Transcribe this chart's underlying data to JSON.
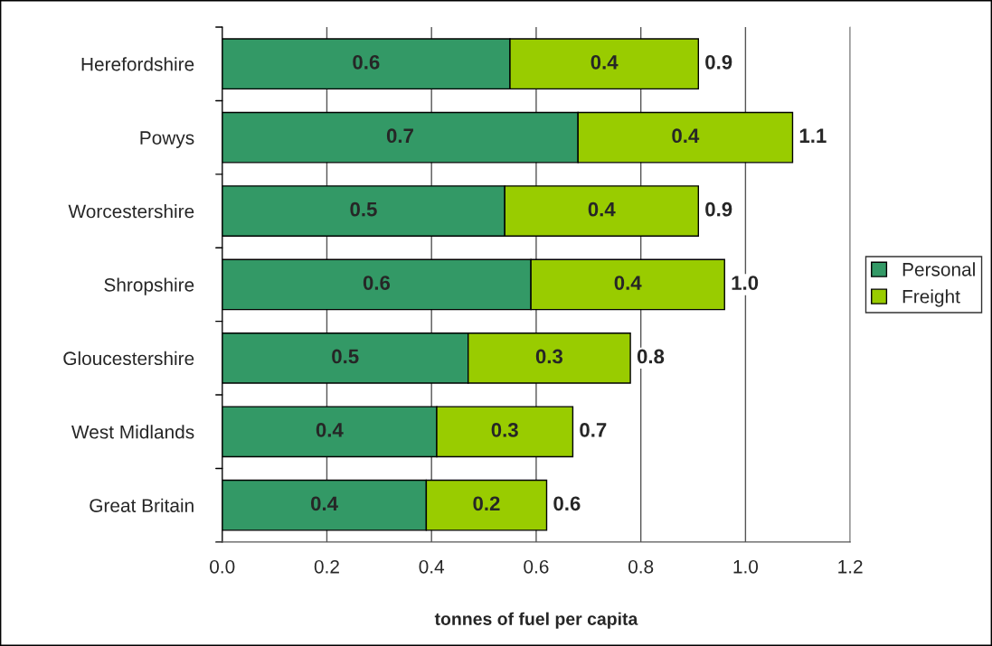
{
  "chart_data": {
    "type": "bar",
    "orientation": "horizontal",
    "stacked": true,
    "categories": [
      "Herefordshire",
      "Powys",
      "Worcestershire",
      "Shropshire",
      "Gloucestershire",
      "West Midlands",
      "Great Britain"
    ],
    "series": [
      {
        "name": "Personal",
        "color": "#339966",
        "values": [
          0.55,
          0.68,
          0.54,
          0.59,
          0.47,
          0.41,
          0.39
        ],
        "value_labels": [
          "0.6",
          "0.7",
          "0.5",
          "0.6",
          "0.5",
          "0.4",
          "0.4"
        ]
      },
      {
        "name": "Freight",
        "color": "#99cc00",
        "values": [
          0.36,
          0.41,
          0.37,
          0.37,
          0.31,
          0.26,
          0.23
        ],
        "value_labels": [
          "0.4",
          "0.4",
          "0.4",
          "0.4",
          "0.3",
          "0.3",
          "0.2"
        ]
      }
    ],
    "totals": [
      "0.9",
      "1.1",
      "0.9",
      "1.0",
      "0.8",
      "0.7",
      "0.6"
    ],
    "xlabel": "tonnes of fuel per capita",
    "xlim": [
      0,
      1.2
    ],
    "xticks": [
      {
        "value": 0,
        "label": "0.0"
      },
      {
        "value": 0.2,
        "label": "0.2"
      },
      {
        "value": 0.4,
        "label": "0.4"
      },
      {
        "value": 0.6,
        "label": "0.6"
      },
      {
        "value": 0.8,
        "label": "0.8"
      },
      {
        "value": 1.0,
        "label": "1.0"
      },
      {
        "value": 1.2,
        "label": "1.2"
      }
    ],
    "grid": "x",
    "legend": "right"
  }
}
